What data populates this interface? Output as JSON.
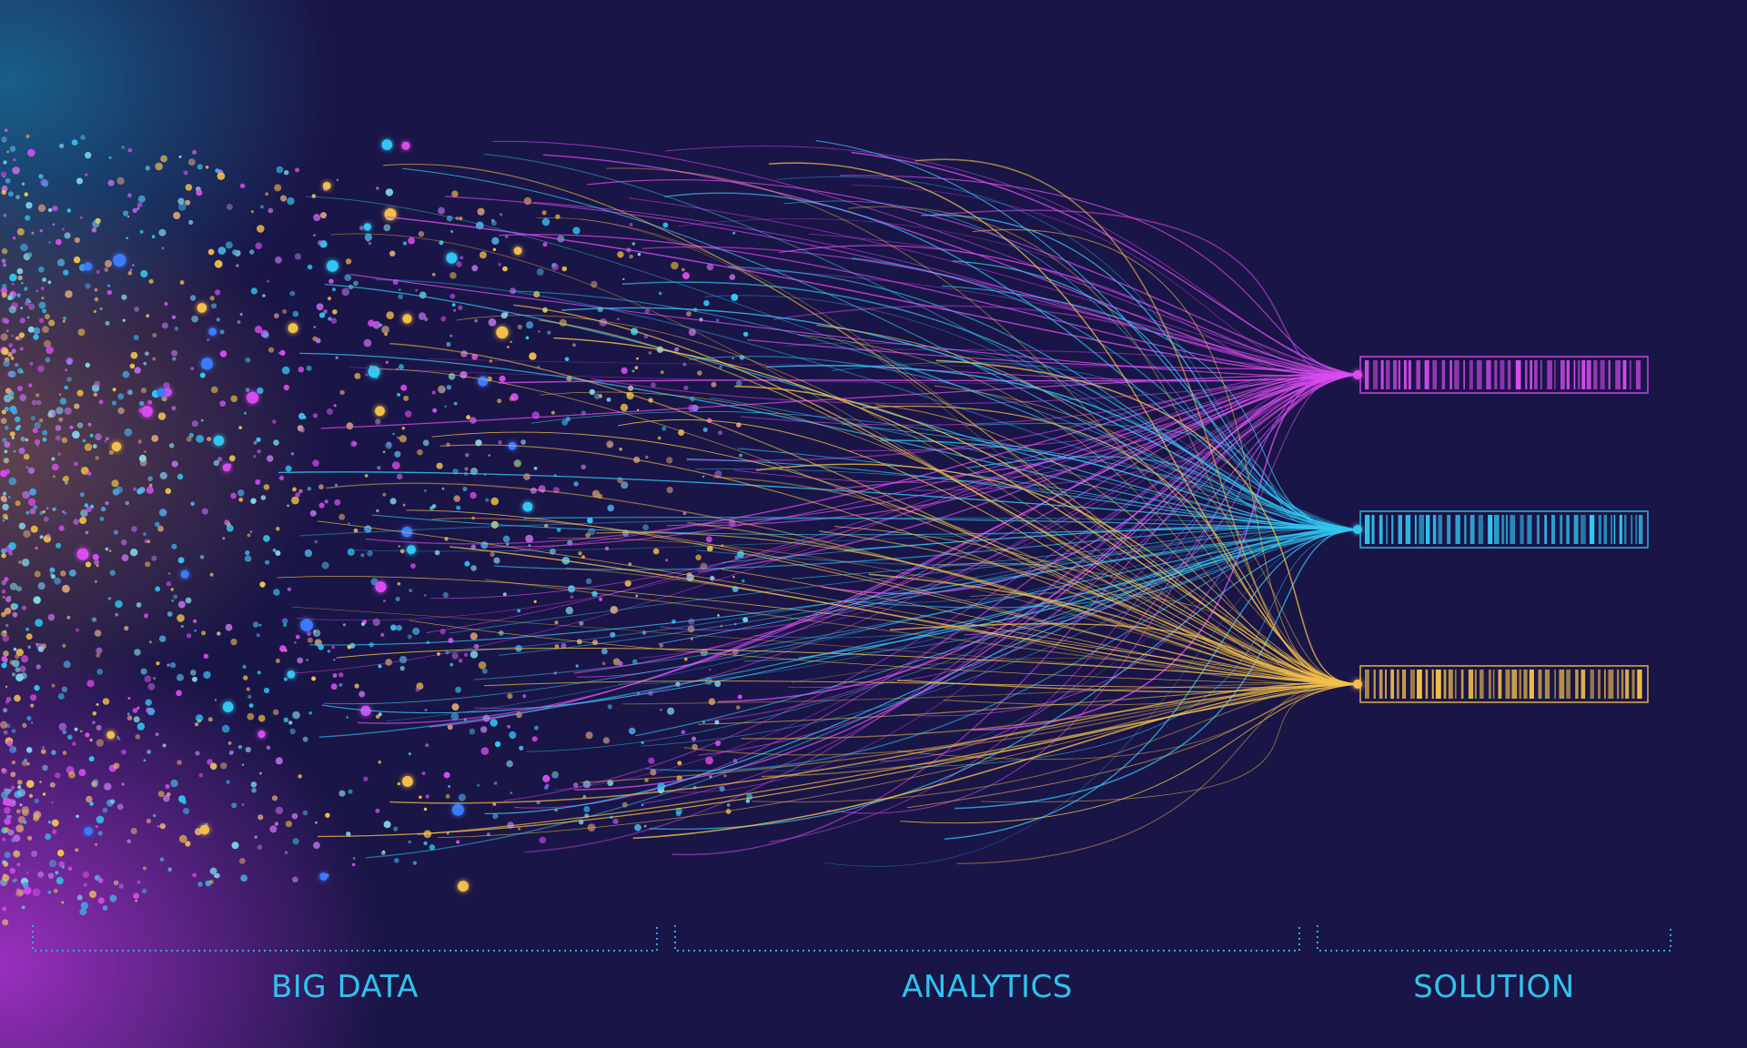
{
  "stages": {
    "big_data": "BIG DATA",
    "analytics": "ANALYTICS",
    "solution": "SOLUTION"
  },
  "colors": {
    "background": "#1a1547",
    "accent_label": "#2fc3ec",
    "magenta": "#d94cf0",
    "cyan": "#32c6f2",
    "yellow": "#f2c04a",
    "bracket": "#2fa8e0"
  },
  "outputs": [
    {
      "name": "magenta-barcode",
      "color": "#d94cf0"
    },
    {
      "name": "cyan-barcode",
      "color": "#32c6f2"
    },
    {
      "name": "yellow-barcode",
      "color": "#f2c04a"
    }
  ]
}
